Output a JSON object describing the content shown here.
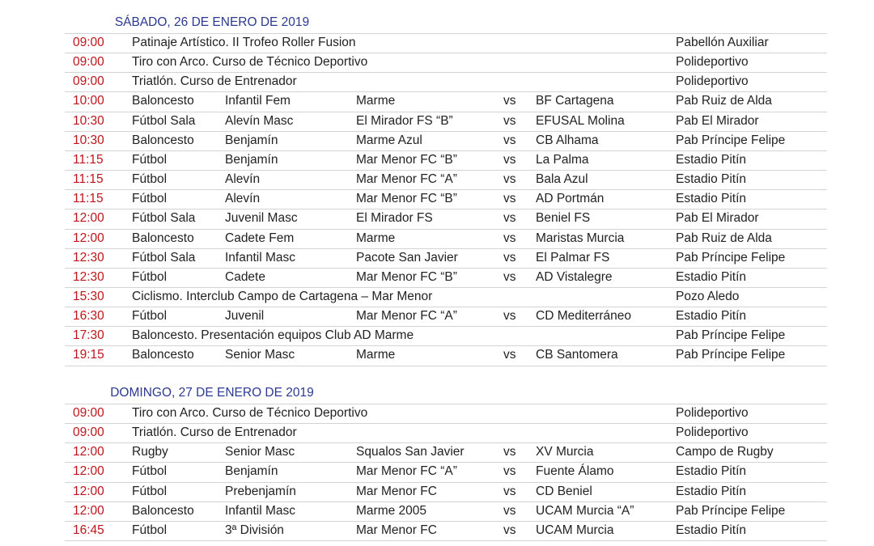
{
  "sections": [
    {
      "title": "SÁBADO, 26 DE ENERO DE 2019",
      "rows": [
        {
          "time": "09:00",
          "event": "Patinaje Artístico. II Trofeo Roller Fusion",
          "venue": "Pabellón Auxiliar"
        },
        {
          "time": "09:00",
          "event": "Tiro con Arco. Curso de Técnico Deportivo",
          "venue": "Polideportivo"
        },
        {
          "time": "09:00",
          "event": "Triatlón. Curso de Entrenador",
          "venue": "Polideportivo"
        },
        {
          "time": "10:00",
          "sport": "Baloncesto",
          "category": "Infantil Fem",
          "home": "Marme",
          "vs": "vs",
          "away": "BF Cartagena",
          "venue": "Pab Ruiz de Alda"
        },
        {
          "time": "10:30",
          "sport": "Fútbol Sala",
          "category": "Alevín Masc",
          "home": "El Mirador FS “B”",
          "vs": "vs",
          "away": "EFUSAL Molina",
          "venue": "Pab El Mirador"
        },
        {
          "time": "10:30",
          "sport": "Baloncesto",
          "category": "Benjamín",
          "home": "Marme Azul",
          "vs": "vs",
          "away": "CB Alhama",
          "venue": "Pab Príncipe Felipe"
        },
        {
          "time": "11:15",
          "sport": "Fútbol",
          "category": "Benjamín",
          "home": "Mar Menor FC “B”",
          "vs": "vs",
          "away": "La Palma",
          "venue": "Estadio Pitín"
        },
        {
          "time": "11:15",
          "sport": "Fútbol",
          "category": "Alevín",
          "home": "Mar Menor FC “A”",
          "vs": "vs",
          "away": "Bala Azul",
          "venue": "Estadio Pitín"
        },
        {
          "time": "11:15",
          "sport": "Fútbol",
          "category": "Alevín",
          "home": "Mar Menor FC “B”",
          "vs": "vs",
          "away": "AD Portmán",
          "venue": "Estadio Pitín"
        },
        {
          "time": "12:00",
          "sport": "Fútbol Sala",
          "category": "Juvenil Masc",
          "home": "El Mirador FS",
          "vs": "vs",
          "away": "Beniel FS",
          "venue": "Pab El Mirador"
        },
        {
          "time": "12:00",
          "sport": "Baloncesto",
          "category": "Cadete Fem",
          "home": "Marme",
          "vs": "vs",
          "away": "Maristas Murcia",
          "venue": "Pab Ruiz de Alda"
        },
        {
          "time": "12:30",
          "sport": "Fútbol Sala",
          "category": "Infantil Masc",
          "home": "Pacote San Javier",
          "vs": "vs",
          "away": "El Palmar FS",
          "venue": "Pab Príncipe Felipe"
        },
        {
          "time": "12:30",
          "sport": "Fútbol",
          "category": "Cadete",
          "home": "Mar Menor FC “B”",
          "vs": "vs",
          "away": "AD Vistalegre",
          "venue": "Estadio Pitín"
        },
        {
          "time": "15:30",
          "event": "Ciclismo. Interclub Campo de Cartagena – Mar Menor",
          "venue": "Pozo Aledo"
        },
        {
          "time": "16:30",
          "sport": "Fútbol",
          "category": "Juvenil",
          "home": "Mar Menor FC “A”",
          "vs": "vs",
          "away": "CD Mediterráneo",
          "venue": "Estadio Pitín"
        },
        {
          "time": "17:30",
          "event": "Baloncesto. Presentación equipos Club AD Marme",
          "venue": "Pab Príncipe Felipe"
        },
        {
          "time": "19:15",
          "sport": "Baloncesto",
          "category": "Senior Masc",
          "home": "Marme",
          "vs": "vs",
          "away": "CB Santomera",
          "venue": "Pab Príncipe Felipe"
        }
      ]
    },
    {
      "title": "DOMINGO, 27 DE ENERO DE 2019",
      "rows": [
        {
          "time": "09:00",
          "event": "Tiro con Arco. Curso de Técnico Deportivo",
          "venue": "Polideportivo"
        },
        {
          "time": "09:00",
          "event": "Triatlón. Curso de Entrenador",
          "venue": "Polideportivo"
        },
        {
          "time": "12:00",
          "sport": "Rugby",
          "category": "Senior Masc",
          "home": "Squalos San Javier",
          "vs": "vs",
          "away": "XV Murcia",
          "venue": "Campo de Rugby"
        },
        {
          "time": "12:00",
          "sport": "Fútbol",
          "category": "Benjamín",
          "home": "Mar Menor FC “A”",
          "vs": "vs",
          "away": "Fuente Álamo",
          "venue": "Estadio Pitín"
        },
        {
          "time": "12:00",
          "sport": "Fútbol",
          "category": "Prebenjamín",
          "home": "Mar Menor FC",
          "vs": "vs",
          "away": "CD Beniel",
          "venue": "Estadio Pitín"
        },
        {
          "time": "12:00",
          "sport": "Baloncesto",
          "category": "Infantil Masc",
          "home": "Marme 2005",
          "vs": "vs",
          "away": "UCAM Murcia “A”",
          "venue": "Pab Príncipe Felipe"
        },
        {
          "time": "16:45",
          "sport": "Fútbol",
          "category": "3ª División",
          "home": "Mar Menor FC",
          "vs": "vs",
          "away": "UCAM Murcia",
          "venue": "Estadio Pitín"
        }
      ]
    }
  ]
}
